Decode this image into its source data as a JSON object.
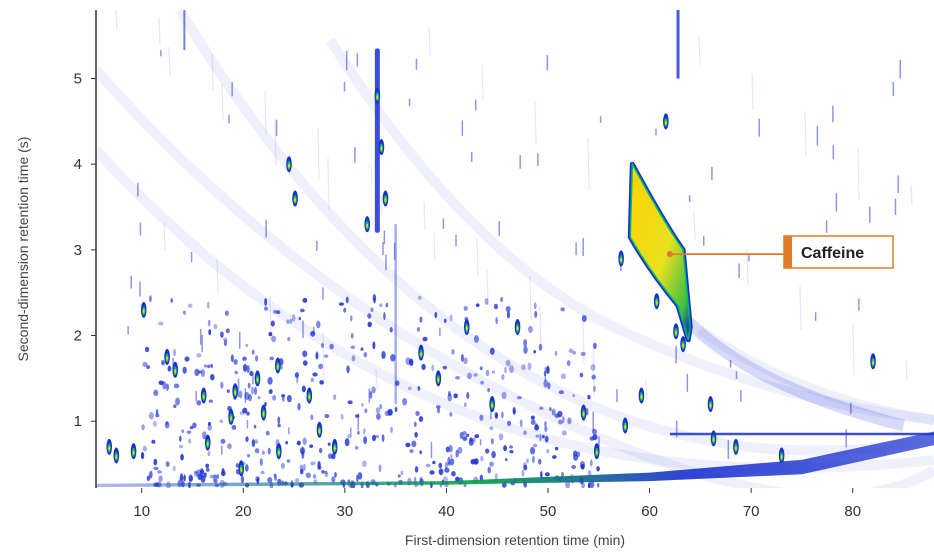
{
  "chart_data": {
    "type": "heatmap",
    "title": "",
    "xlabel": "First-dimension retention time (min)",
    "ylabel": "Second-dimension retention time (s)",
    "xlim": [
      5.5,
      88
    ],
    "ylim": [
      0.22,
      5.8
    ],
    "x_ticks": [
      10,
      20,
      30,
      40,
      50,
      60,
      70,
      80
    ],
    "y_ticks": [
      1,
      2,
      3,
      4,
      5
    ],
    "grid": false,
    "colors": {
      "low": "#1a2fd0",
      "mid": "#00c060",
      "high": "#ffd200",
      "peak": "#ff3000",
      "callout": "#e07b28"
    },
    "annotations": [
      {
        "label": "Caffeine",
        "x": 62,
        "y": 2.95
      }
    ],
    "caffeine_band": {
      "upper_edge": [
        [
          58.3,
          4.0
        ],
        [
          63.3,
          3.0
        ],
        [
          64.0,
          2.1
        ]
      ],
      "lower_edge": [
        [
          58.1,
          3.15
        ],
        [
          62.8,
          2.35
        ],
        [
          63.8,
          1.95
        ]
      ]
    },
    "peaks": [
      [
        6.8,
        0.7
      ],
      [
        7.5,
        0.6
      ],
      [
        9.2,
        0.65
      ],
      [
        10.2,
        2.3
      ],
      [
        12.5,
        1.75
      ],
      [
        13.3,
        1.6
      ],
      [
        16.1,
        1.3
      ],
      [
        16.5,
        0.75
      ],
      [
        18.8,
        1.05
      ],
      [
        19.2,
        1.35
      ],
      [
        19.8,
        0.45
      ],
      [
        21.4,
        1.5
      ],
      [
        22.0,
        1.1
      ],
      [
        23.4,
        1.65
      ],
      [
        23.5,
        0.65
      ],
      [
        24.5,
        4.0
      ],
      [
        25.1,
        3.6
      ],
      [
        26.5,
        1.3
      ],
      [
        27.5,
        0.9
      ],
      [
        29.0,
        0.7
      ],
      [
        32.2,
        3.3
      ],
      [
        33.2,
        4.8
      ],
      [
        33.6,
        4.2
      ],
      [
        34.0,
        3.6
      ],
      [
        37.5,
        1.8
      ],
      [
        39.2,
        1.5
      ],
      [
        42.0,
        2.1
      ],
      [
        44.5,
        1.2
      ],
      [
        47.0,
        2.1
      ],
      [
        53.5,
        1.1
      ],
      [
        54.8,
        0.65
      ],
      [
        57.2,
        2.9
      ],
      [
        57.6,
        0.95
      ],
      [
        59.2,
        1.3
      ],
      [
        60.7,
        2.4
      ],
      [
        61.6,
        4.5
      ],
      [
        62.6,
        2.05
      ],
      [
        63.3,
        1.9
      ],
      [
        66.0,
        1.2
      ],
      [
        66.3,
        0.8
      ],
      [
        68.5,
        0.7
      ],
      [
        73.0,
        0.6
      ],
      [
        82.0,
        1.7
      ]
    ]
  }
}
